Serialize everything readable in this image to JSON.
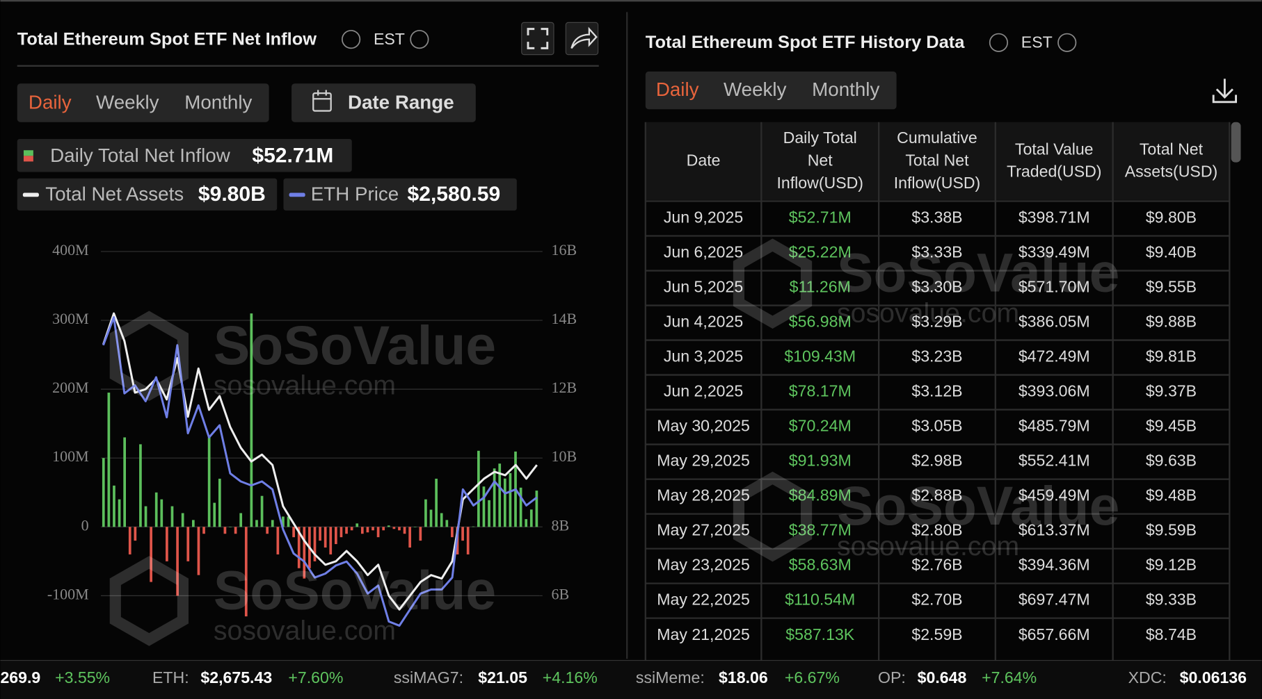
{
  "left_panel": {
    "title": "Total Ethereum Spot ETF Net Inflow",
    "timezone": "EST",
    "tabs": [
      "Daily",
      "Weekly",
      "Monthly"
    ],
    "date_range": "Date Range"
  },
  "chart_data": {
    "type": "bar",
    "ylim": [
      -190,
      400
    ],
    "yticks": [
      {
        "value": 400,
        "label": "400M"
      },
      {
        "value": 300,
        "label": "300M"
      },
      {
        "value": 200,
        "label": "200M"
      },
      {
        "value": 100,
        "label": "100M"
      },
      0,
      {
        "value": -100,
        "label": "-100M"
      }
    ],
    "y2lim": [
      4.2,
      16
    ],
    "y2ticks": [
      {
        "value": 16,
        "label": "16B"
      },
      {
        "value": 14,
        "label": "14B"
      },
      {
        "value": 12,
        "label": "12B"
      },
      {
        "value": 10,
        "label": "10B"
      },
      {
        "value": 8,
        "label": "8B"
      },
      {
        "value": 6,
        "label": "6B"
      }
    ],
    "y3lim": [
      1205,
      4690
    ],
    "grid": true,
    "positive_color": "#5cbf5c",
    "negative_color": "#e0554a",
    "legend_values": [
      "$52.71M",
      "$9.80B",
      "$2,580.59"
    ],
    "series": [
      {
        "name": "Daily Total Net Inflow",
        "values": [
          100,
          195,
          60,
          40,
          130,
          -40,
          -20,
          120,
          30,
          -80,
          50,
          40,
          -50,
          30,
          -100,
          20,
          -50,
          10,
          -70,
          -10,
          130,
          35,
          70,
          -10,
          0,
          -10,
          20,
          -130,
          310,
          10,
          45,
          -10,
          10,
          -40,
          15,
          15,
          -15,
          -60,
          -75,
          -60,
          -50,
          -20,
          -30,
          -40,
          -25,
          -15,
          -10,
          -5,
          5,
          -10,
          -8,
          -5,
          -15,
          -5,
          2,
          -3,
          -5,
          -10,
          -30,
          0,
          -20,
          40,
          25,
          70,
          20,
          10,
          -15,
          -40,
          -20,
          -40,
          0.587,
          110.54,
          58.63,
          38.77,
          84.89,
          91.93,
          70.24,
          78.17,
          109.43,
          56.98,
          11.26,
          25.22,
          52.71
        ]
      },
      {
        "name": "Total Net Assets",
        "axis": "y2",
        "color": "#eeeeee",
        "values": [
          13.3,
          14.2,
          13.4,
          11.9,
          12.0,
          12.3,
          11.7,
          12.9,
          11.2,
          12.6,
          11.4,
          11.8,
          10.9,
          10.3,
          9.9,
          10.1,
          9.8,
          8.6,
          8.1,
          7.6,
          7.2,
          6.9,
          7.0,
          7.3,
          7.0,
          6.6,
          6.9,
          6.0,
          5.6,
          6.0,
          6.4,
          6.6,
          6.5,
          7.0,
          8.8,
          9.1,
          9.4,
          9.6,
          9.5,
          9.8,
          9.4,
          9.8
        ]
      },
      {
        "name": "ETH Price",
        "axis": "y3",
        "color": "#6f7fe6",
        "values": [
          3886,
          4126,
          3473,
          3542,
          3405,
          3611,
          3267,
          3886,
          3130,
          3370,
          3095,
          3199,
          2786,
          2717,
          2683,
          2717,
          2649,
          2305,
          2099,
          2030,
          1893,
          1927,
          1996,
          2030,
          1927,
          1755,
          1824,
          1515,
          1480,
          1618,
          1755,
          1790,
          1790,
          1893,
          2649,
          2511,
          2580,
          2717,
          2614,
          2649,
          2511,
          2580.59
        ]
      }
    ]
  },
  "watermark": {
    "brand": "SoSoValue",
    "site": "sosovalue.com"
  },
  "right_panel": {
    "title": "Total Ethereum Spot ETF History Data",
    "timezone": "EST",
    "tabs": [
      "Daily",
      "Weekly",
      "Monthly"
    ]
  },
  "table": {
    "columns": [
      [
        "Date"
      ],
      [
        "Daily Total",
        "Net",
        "Inflow(USD)"
      ],
      [
        "Cumulative",
        "Total Net",
        "Inflow(USD)"
      ],
      [
        "Total Value",
        "Traded(USD)"
      ],
      [
        "Total Net",
        "Assets(USD)"
      ]
    ],
    "rows": [
      [
        "Jun 9,2025",
        "$52.71M",
        "$3.38B",
        "$398.71M",
        "$9.80B"
      ],
      [
        "Jun 6,2025",
        "$25.22M",
        "$3.33B",
        "$339.49M",
        "$9.40B"
      ],
      [
        "Jun 5,2025",
        "$11.26M",
        "$3.30B",
        "$571.70M",
        "$9.55B"
      ],
      [
        "Jun 4,2025",
        "$56.98M",
        "$3.29B",
        "$386.05M",
        "$9.88B"
      ],
      [
        "Jun 3,2025",
        "$109.43M",
        "$3.23B",
        "$472.49M",
        "$9.81B"
      ],
      [
        "Jun 2,2025",
        "$78.17M",
        "$3.12B",
        "$393.06M",
        "$9.37B"
      ],
      [
        "May 30,2025",
        "$70.24M",
        "$3.05B",
        "$485.79M",
        "$9.45B"
      ],
      [
        "May 29,2025",
        "$91.93M",
        "$2.98B",
        "$552.41M",
        "$9.63B"
      ],
      [
        "May 28,2025",
        "$84.89M",
        "$2.88B",
        "$459.49M",
        "$9.48B"
      ],
      [
        "May 27,2025",
        "$38.77M",
        "$2.80B",
        "$613.37M",
        "$9.59B"
      ],
      [
        "May 23,2025",
        "$58.63M",
        "$2.76B",
        "$394.36M",
        "$9.12B"
      ],
      [
        "May 22,2025",
        "$110.54M",
        "$2.70B",
        "$697.47M",
        "$9.33B"
      ],
      [
        "May 21,2025",
        "$587.13K",
        "$2.59B",
        "$657.66M",
        "$8.74B"
      ]
    ]
  },
  "ticker": [
    {
      "price": "269.9",
      "change": "+3.55%"
    },
    {
      "label": "ETH:",
      "price": "$2,675.43",
      "change": "+7.60%"
    },
    {
      "label": "ssiMAG7:",
      "price": "$21.05",
      "change": "+4.16%"
    },
    {
      "label": "ssiMeme:",
      "price": "$18.06",
      "change": "+6.67%"
    },
    {
      "label": "OP:",
      "price": "$0.648",
      "change": "+7.64%"
    },
    {
      "label": "XDC:",
      "price": "$0.06136"
    }
  ]
}
